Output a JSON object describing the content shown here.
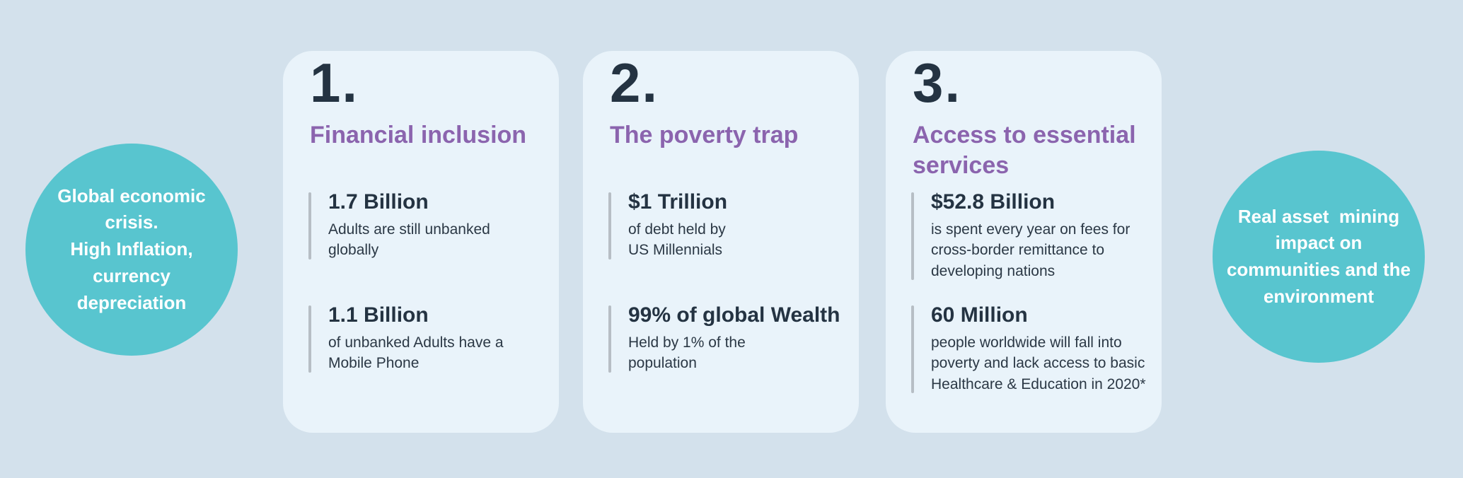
{
  "colors": {
    "background": "#d3e1ec",
    "card_background": "#e9f3fa",
    "circle_teal": "#58c5cf",
    "heading_purple": "#8b64ae",
    "text_dark": "#243342",
    "accent_bar_gray": "#b7bec5",
    "circle_text_white": "#ffffff"
  },
  "circles": {
    "left": {
      "text": "Global economic\ncrisis.\nHigh Inflation,\ncurrency\ndepreciation"
    },
    "right": {
      "text": "Real asset  mining\nimpact on\ncommunities and the\nenvironment"
    }
  },
  "cards": [
    {
      "number": "1.",
      "title": "Financial inclusion",
      "stats": [
        {
          "value": "1.7 Billion",
          "description": "Adults are still unbanked\nglobally"
        },
        {
          "value": "1.1 Billion",
          "description": "of unbanked Adults have a\nMobile Phone"
        }
      ]
    },
    {
      "number": "2.",
      "title": "The poverty trap",
      "stats": [
        {
          "value": "$1 Trillion",
          "description": "of debt held by\nUS Millennials"
        },
        {
          "value": "99% of global Wealth",
          "description": "Held by 1% of the\npopulation"
        }
      ]
    },
    {
      "number": "3.",
      "title": "Access to essential\nservices",
      "stats": [
        {
          "value": "$52.8 Billion",
          "description": "is spent every year on fees for\ncross-border remittance to\ndeveloping nations"
        },
        {
          "value": "60 Million",
          "description": "people worldwide will fall into\npoverty and lack access to basic\nHealthcare & Education in 2020*"
        }
      ]
    }
  ]
}
